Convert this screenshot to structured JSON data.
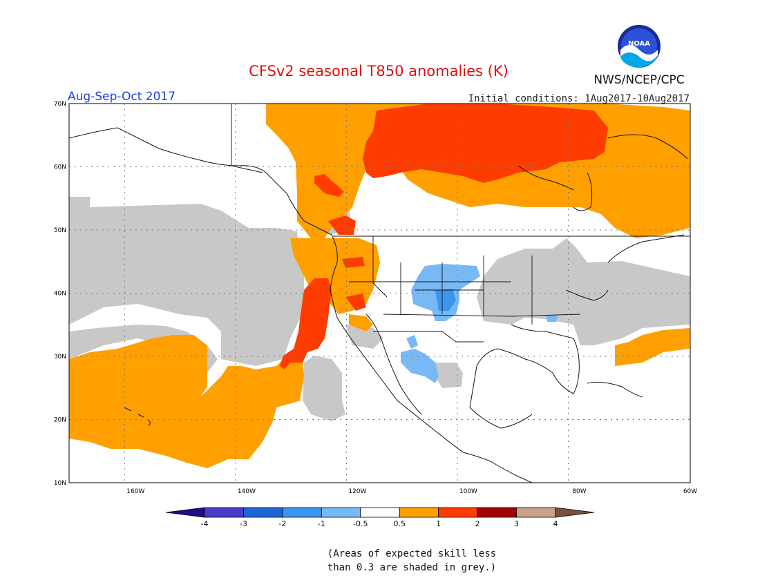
{
  "header": {
    "title": "CFSv2 seasonal T850 anomalies (K)",
    "season": "Aug-Sep-Oct 2017",
    "initial_conditions": "Initial conditions: 1Aug2017-10Aug2017",
    "agency": "NWS/NCEP/CPC",
    "logo_text": "NOAA"
  },
  "map": {
    "lon_range": [
      -172,
      -60
    ],
    "lat_range": [
      10,
      70
    ],
    "lat_labels": [
      "70N",
      "60N",
      "50N",
      "40N",
      "30N",
      "20N",
      "10N"
    ],
    "lon_labels": [
      "160W",
      "140W",
      "120W",
      "100W",
      "80W",
      "60W"
    ],
    "gridlines": "dotted"
  },
  "colorbar": {
    "colors": [
      "#1e0e8c",
      "#4a3cc8",
      "#1e64d2",
      "#3c96f0",
      "#78b9f5",
      "#ffffff",
      "#ffa000",
      "#ff3c00",
      "#a00000",
      "#c8a08c",
      "#7a503c"
    ],
    "tick_labels": [
      "-4",
      "-3",
      "-2",
      "-1",
      "-0.5",
      "0.5",
      "1",
      "2",
      "3",
      "4"
    ]
  },
  "note": {
    "line1": "(Areas of expected skill less",
    "line2": "than 0.3 are shaded in grey.)"
  },
  "colors": {
    "title": "#e01010",
    "season": "#2040e0",
    "grey_skill": "#c8c8c8",
    "orange": "#ffa000",
    "red_orange": "#ff3c00",
    "light_blue": "#78b9f5",
    "mid_blue": "#3c96f0"
  }
}
